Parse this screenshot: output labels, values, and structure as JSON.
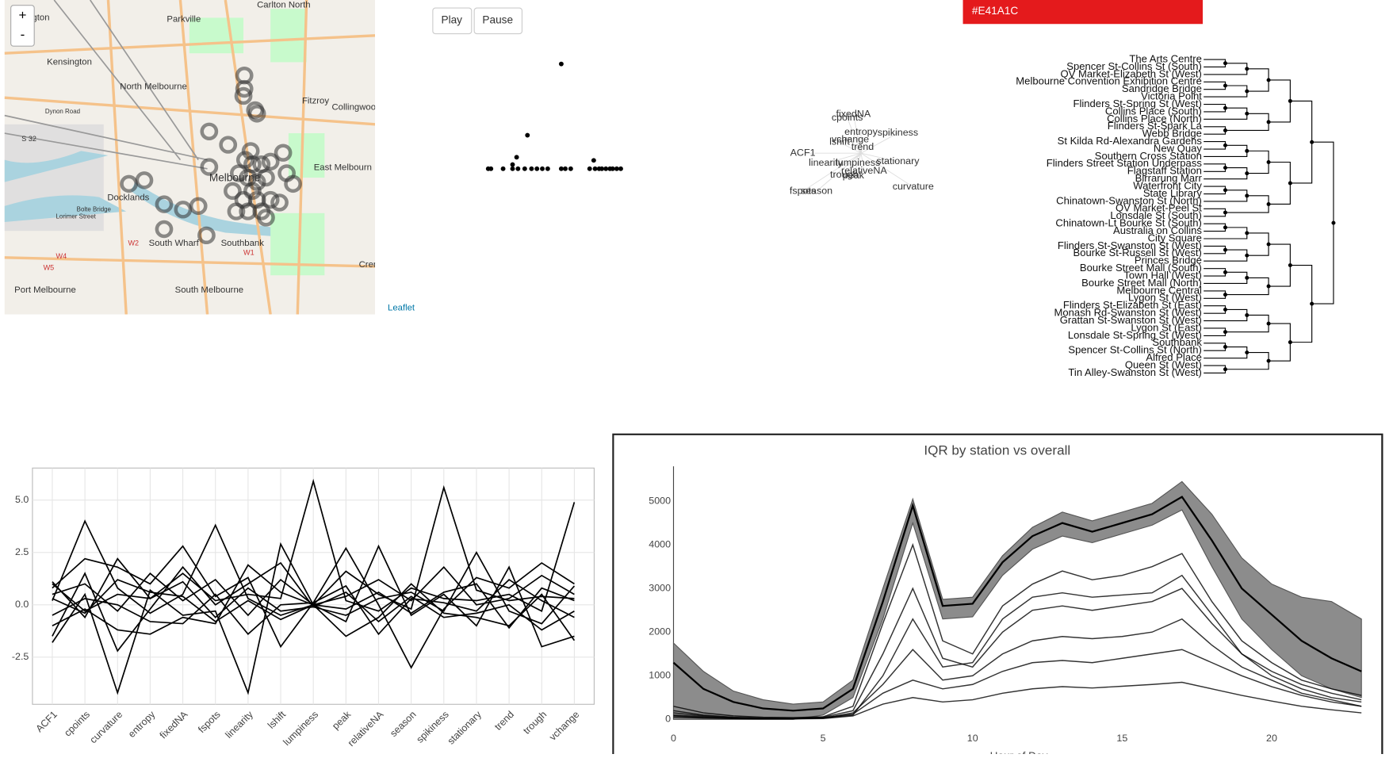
{
  "map": {
    "zoom_in": "+",
    "zoom_out": "-",
    "attribution": "Leaflet",
    "labels": [
      "ngton",
      "Parkville",
      "Carlton North",
      "Kensington",
      "North Melbourne",
      "Fitzroy",
      "Collingwoo",
      "Dynon Road",
      "S 32",
      "East Melbourn",
      "Docklands",
      "Melbourne",
      "Bolte Bridge",
      "Lorimer Street",
      "South Wharf",
      "Southbank",
      "Port Melbourne",
      "South Melbourne",
      "W5",
      "W4",
      "W2",
      "W1",
      "Cren"
    ]
  },
  "controls": {
    "play": "Play",
    "pause": "Pause",
    "color": "#E41A1C"
  },
  "scatter": {
    "type": "scatter",
    "xlim": [
      0,
      100
    ],
    "ylim": [
      0,
      10
    ],
    "x": [
      1,
      3,
      12,
      19,
      23,
      28,
      33,
      37,
      41,
      45,
      55,
      58,
      62,
      76,
      80,
      83,
      85,
      88,
      91,
      93,
      96,
      99,
      55,
      30,
      22,
      19,
      79
    ],
    "y": [
      0,
      0,
      0,
      0,
      0,
      0,
      0,
      0,
      0,
      0,
      0,
      0,
      0,
      0,
      0,
      0,
      0,
      0,
      0,
      0,
      0,
      0,
      10,
      3.2,
      1.1,
      0.4,
      0.8
    ]
  },
  "feature_map": {
    "xlim": [
      0,
      100
    ],
    "ylim": [
      0,
      100
    ],
    "labels": [
      "fixedNA",
      "cpoints",
      "entropy",
      "spikiness",
      "vchange",
      "lshift",
      "trend",
      "ACF1",
      "linearity",
      "lumpiness",
      "stationary",
      "relativeNA",
      "trough",
      "peak",
      "curvature",
      "fspots",
      "season"
    ],
    "x": [
      45,
      41,
      50,
      74,
      43,
      36,
      51,
      12,
      27,
      48,
      74,
      52,
      39,
      45,
      84,
      12,
      21
    ],
    "y": [
      96,
      92,
      75,
      74,
      66,
      63,
      57,
      50,
      38,
      38,
      40,
      29,
      24,
      23,
      10,
      5,
      5
    ]
  },
  "dendrogram": {
    "leaves": [
      "The Arts Centre",
      "Spencer St-Collins St (South)",
      "QV Market-Elizabeth St (West)",
      "Melbourne Convention Exhibition Centre",
      "Sandridge Bridge",
      "Victoria Point",
      "Flinders St-Spring St (West)",
      "Collins Place (South)",
      "Collins Place (North)",
      "Flinders St-Spark La",
      "Webb Bridge",
      "St Kilda Rd-Alexandra Gardens",
      "New Quay",
      "Southern Cross Station",
      "Flinders Street Station Underpass",
      "Flagstaff Station",
      "Birrarung Marr",
      "Waterfront City",
      "State Library",
      "Chinatown-Swanston St (North)",
      "QV Market-Peel St",
      "Lonsdale St (South)",
      "Chinatown-Lt Bourke St (South)",
      "Australia on Collins",
      "City Square",
      "Flinders St-Swanston St (West)",
      "Bourke St-Russell St (West)",
      "Princes Bridge",
      "Bourke Street Mall (South)",
      "Town Hall (West)",
      "Bourke Street Mall (North)",
      "Melbourne Central",
      "Lygon St (West)",
      "Flinders St-Elizabeth St (East)",
      "Monash Rd-Swanston St (West)",
      "Grattan St-Swanston St (West)",
      "Lygon St (East)",
      "Lonsdale St-Spring St (West)",
      "Southbank",
      "Spencer St-Collins St (North)",
      "Alfred Place",
      "Queen St (West)",
      "Tin Alley-Swanston St (West)"
    ]
  },
  "chart_data": [
    {
      "type": "parcoord",
      "color": "#000000",
      "grid": true,
      "categories": [
        "ACF1",
        "cpoints",
        "curvature",
        "entropy",
        "fixedNA",
        "fspots",
        "linearity",
        "lshift",
        "lumpiness",
        "peak",
        "relativeNA",
        "season",
        "spikiness",
        "stationary",
        "trend",
        "trough",
        "vchange"
      ],
      "ylim": [
        -4.75,
        6.53
      ],
      "yticks": [
        {
          "value": 5,
          "label": "5.0"
        },
        2.5,
        {
          "value": 0,
          "label": "0.0"
        },
        -2.5
      ],
      "series": [
        {
          "values": [
            1.0,
            -0.3,
            0.5,
            0.3,
            1.5,
            0.2,
            0.5,
            0.3,
            5.9,
            0.2,
            -0.3,
            0.8,
            0.3,
            0.2,
            0.5,
            -0.3,
            4.9
          ]
        },
        {
          "values": [
            0.2,
            4.0,
            0.8,
            -0.4,
            0.5,
            3.8,
            0.3,
            -0.5,
            0.0,
            1.6,
            0.5,
            -0.2,
            5.6,
            0.7,
            0.2,
            0.4,
            0.3
          ]
        },
        {
          "values": [
            -1.8,
            0.5,
            -4.2,
            0.7,
            -0.5,
            -0.3,
            -4.2,
            2.9,
            0.0,
            -0.8,
            2.8,
            -0.5,
            0.5,
            -1.0,
            1.8,
            -2.0,
            -1.5
          ]
        },
        {
          "values": [
            0.8,
            2.2,
            1.8,
            1.0,
            2.8,
            0.4,
            1.3,
            -2.0,
            0.1,
            2.7,
            0.0,
            -3.0,
            -0.2,
            1.3,
            0.8,
            2.0,
            1.0
          ]
        },
        {
          "values": [
            -1.0,
            -0.2,
            -1.2,
            -1.4,
            -0.6,
            -0.9,
            1.9,
            0.6,
            0.0,
            -1.5,
            -0.6,
            1.0,
            -0.4,
            -0.6,
            -1.0,
            0.5,
            -1.7
          ]
        },
        {
          "values": [
            0.5,
            1.0,
            -0.3,
            1.5,
            0.2,
            1.2,
            -0.5,
            1.2,
            0.0,
            0.4,
            1.2,
            0.2,
            1.8,
            0.0,
            0.3,
            1.4,
            0.5
          ]
        },
        {
          "values": [
            1.1,
            -0.6,
            2.2,
            0.3,
            1.1,
            -0.6,
            0.8,
            -0.3,
            -0.1,
            -0.5,
            0.3,
            0.6,
            -0.3,
            2.5,
            -0.3,
            -0.9,
            0.9
          ]
        },
        {
          "values": [
            -0.5,
            0.3,
            0.0,
            -0.8,
            -0.9,
            0.5,
            -1.4,
            0.0,
            0.1,
            0.9,
            -1.4,
            0.3,
            0.1,
            -0.3,
            1.2,
            0.2,
            -0.6
          ]
        },
        {
          "values": [
            0.3,
            -0.4,
            1.2,
            0.6,
            0.4,
            -0.8,
            0.2,
            -0.7,
            0.0,
            -0.2,
            0.6,
            -0.4,
            0.6,
            1.0,
            -1.1,
            0.8,
            0.2
          ]
        },
        {
          "values": [
            -1.5,
            1.5,
            -2.2,
            -0.2,
            1.8,
            0.0,
            1.0,
            2.0,
            -0.1,
            0.6,
            -0.8,
            0.4,
            -0.6,
            -0.4,
            0.0,
            -1.2,
            -0.3
          ]
        }
      ]
    },
    {
      "type": "line",
      "title": "IQR by station vs overall",
      "xlabel": "Hour of Day",
      "x": [
        0,
        1,
        2,
        3,
        4,
        5,
        6,
        7,
        8,
        9,
        10,
        11,
        12,
        13,
        14,
        15,
        16,
        17,
        18,
        19,
        20,
        21,
        22,
        23
      ],
      "xlim": [
        0,
        23
      ],
      "xticks": [
        0,
        5,
        10,
        15,
        20
      ],
      "ylim": [
        0,
        5800
      ],
      "yticks": [
        0,
        1000,
        2000,
        3000,
        4000,
        5000
      ],
      "band_color": "#808080",
      "color": "#000000",
      "overall": {
        "values": [
          1300,
          700,
          400,
          250,
          200,
          250,
          700,
          2700,
          4900,
          2600,
          2650,
          3600,
          4200,
          4500,
          4300,
          4500,
          4700,
          5100,
          4100,
          3000,
          2400,
          1800,
          1400,
          1100
        ],
        "lower": [
          0,
          0,
          0,
          0,
          0,
          100,
          500,
          2300,
          4500,
          2300,
          2350,
          3300,
          3900,
          4200,
          4050,
          4250,
          4450,
          4800,
          3500,
          2300,
          1600,
          1000,
          700,
          500
        ],
        "upper": [
          1750,
          1100,
          650,
          450,
          350,
          400,
          900,
          3000,
          5050,
          2750,
          2800,
          3750,
          4400,
          4750,
          4550,
          4750,
          4950,
          5450,
          4700,
          3700,
          3100,
          2800,
          2700,
          2300
        ]
      },
      "series": [
        {
          "values": [
            200,
            100,
            50,
            30,
            30,
            50,
            200,
            1500,
            3000,
            1400,
            1200,
            2000,
            2500,
            2600,
            2500,
            2600,
            2700,
            3000,
            2200,
            1500,
            1000,
            700,
            500,
            400
          ]
        },
        {
          "values": [
            300,
            150,
            80,
            50,
            40,
            60,
            300,
            2200,
            4000,
            1800,
            1500,
            2600,
            3100,
            3400,
            3200,
            3300,
            3500,
            3800,
            2700,
            1800,
            1300,
            900,
            700,
            550
          ]
        },
        {
          "values": [
            100,
            60,
            30,
            20,
            20,
            30,
            150,
            800,
            1600,
            900,
            1000,
            1500,
            1800,
            1900,
            1850,
            1900,
            2000,
            2300,
            1700,
            1200,
            900,
            600,
            450,
            300
          ]
        },
        {
          "values": [
            150,
            80,
            40,
            20,
            20,
            40,
            120,
            600,
            900,
            700,
            800,
            1100,
            1300,
            1350,
            1300,
            1400,
            1500,
            1600,
            1300,
            1000,
            750,
            550,
            400,
            300
          ]
        },
        {
          "values": [
            50,
            30,
            20,
            10,
            10,
            20,
            80,
            350,
            500,
            400,
            450,
            600,
            700,
            750,
            720,
            760,
            800,
            850,
            700,
            550,
            420,
            300,
            220,
            150
          ]
        },
        {
          "values": [
            80,
            40,
            20,
            15,
            15,
            30,
            100,
            1000,
            2300,
            1200,
            1300,
            2300,
            2800,
            2900,
            2800,
            2850,
            2900,
            3300,
            2400,
            1500,
            1100,
            800,
            600,
            450
          ]
        }
      ]
    }
  ]
}
